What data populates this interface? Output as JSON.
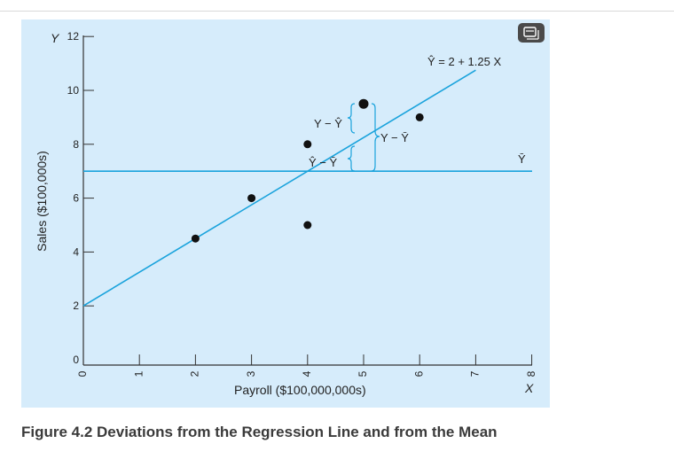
{
  "caption": "Figure 4.2 Deviations from the Regression Line and from the Mean",
  "colors": {
    "panel": "#d6ecfb",
    "line": "#1aa3dc",
    "axis": "#333333",
    "point": "#111111"
  },
  "icons": [
    "copy-icon"
  ],
  "chart_data": {
    "type": "scatter",
    "xlabel": "Payroll ($100,000,000s)",
    "ylabel": "Sales ($100,000s)",
    "x_axis_symbol": "X",
    "y_axis_symbol": "Y",
    "xlim": [
      0,
      8
    ],
    "ylim": [
      0,
      12
    ],
    "x_ticks": [
      "0",
      "1",
      "2",
      "3",
      "4",
      "5",
      "6",
      "7",
      "8"
    ],
    "y_ticks": [
      "0",
      "2",
      "4",
      "6",
      "8",
      "10",
      "12"
    ],
    "points": [
      {
        "x": 2,
        "y": 4.5
      },
      {
        "x": 3,
        "y": 6
      },
      {
        "x": 4,
        "y": 8
      },
      {
        "x": 4,
        "y": 5
      },
      {
        "x": 5,
        "y": 9.5
      },
      {
        "x": 6,
        "y": 9
      }
    ],
    "regression_line": {
      "intercept": 2,
      "slope": 1.25,
      "label": "Ŷ = 2 + 1.25 X"
    },
    "mean_line": {
      "y": 7,
      "label": "Ȳ"
    },
    "annotations": [
      {
        "text": "Y − Ŷ"
      },
      {
        "text": "Y − Ȳ"
      },
      {
        "text": "Ŷ − Ȳ"
      }
    ]
  }
}
